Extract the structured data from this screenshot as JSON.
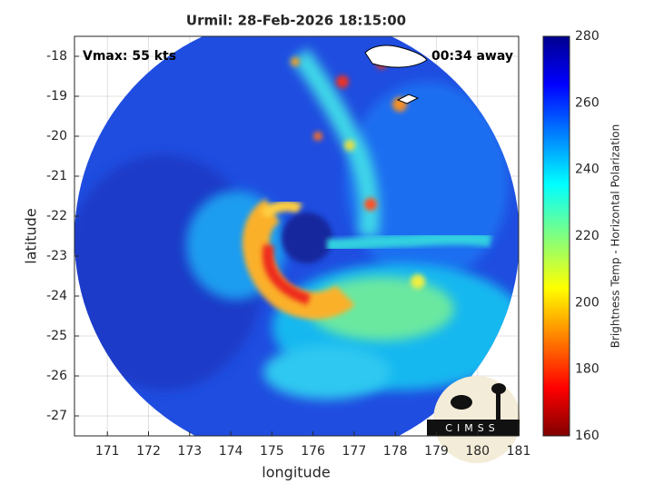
{
  "chart_data": {
    "type": "image",
    "title": "Urmil: 28-Feb-2026 18:15:00",
    "annotations": [
      "Vmax: 55 kts",
      "00:34 away"
    ],
    "x_label": "longitude",
    "y_label": "latitude",
    "xlim": [
      170.2,
      181
    ],
    "xticks": [
      171,
      172,
      173,
      174,
      175,
      176,
      177,
      178,
      179,
      180,
      181
    ],
    "ylim": [
      -27.5,
      -17.5
    ],
    "yticks": [
      -27,
      -26,
      -25,
      -24,
      -23,
      -22,
      -21,
      -20,
      -19,
      -18
    ],
    "grid": true,
    "colorbar_label": "Brightness Temp - Horizontal Polarization",
    "clim": [
      160,
      280
    ],
    "cticks": [
      160,
      180,
      200,
      220,
      240,
      260,
      280
    ],
    "logo": "CIMSS"
  }
}
